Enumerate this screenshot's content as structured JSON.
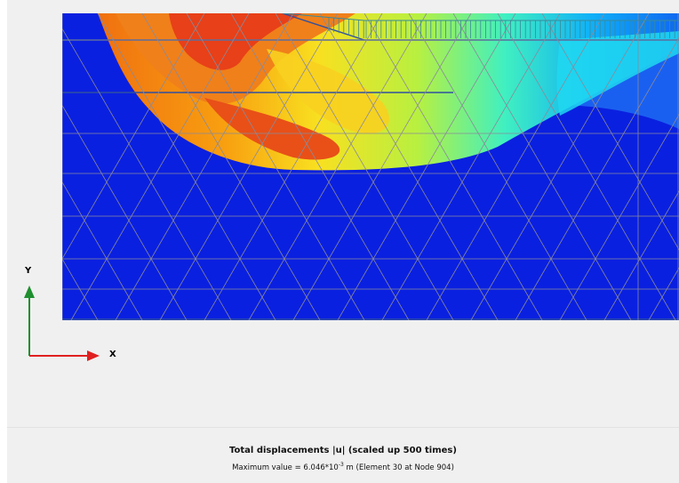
{
  "axes": {
    "x_label": "X",
    "y_label": "Y"
  },
  "caption": {
    "title": "Total displacements |u| (scaled up 500 times)",
    "max_prefix": "Maximum value = 6.046*10",
    "max_exponent": "-3",
    "max_suffix": " m (Element 30 at Node 904)"
  },
  "colors": {
    "background": "#f0f0f0",
    "mesh": "#8a8a9a",
    "load_arrows": "#3a8a9a",
    "x_axis": "#e02020",
    "y_axis": "#1f8f2f",
    "contour_low": "#0a1ee0",
    "contour_high": "#e83a10"
  },
  "icons": {
    "load_arrows": "distributed-load-arrows-icon",
    "axis_triad": "xy-axis-triad-icon"
  }
}
